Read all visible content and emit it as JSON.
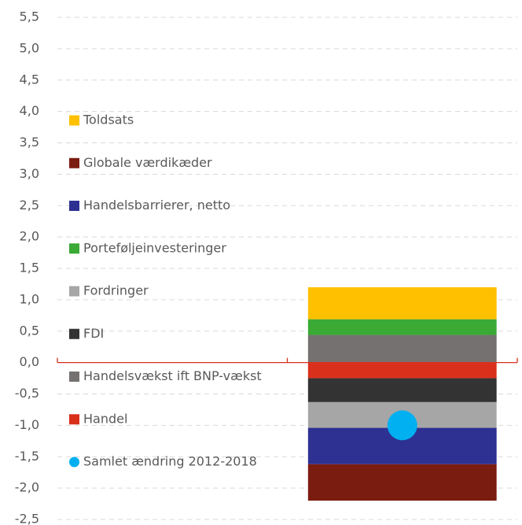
{
  "chart_data": {
    "type": "bar",
    "stacked": true,
    "categories": [
      null,
      null
    ],
    "series": [
      {
        "name": "Toldsats",
        "color": "#ffc000",
        "values": [
          null,
          0.51
        ]
      },
      {
        "name": "Globale værdikæder",
        "color": "#7b1c10",
        "values": [
          null,
          -0.58
        ]
      },
      {
        "name": "Handelsbarrierer, netto",
        "color": "#2e3192",
        "values": [
          null,
          -0.58
        ]
      },
      {
        "name": "Porteføljeinvesteringer",
        "color": "#3aaa35",
        "values": [
          null,
          0.25
        ]
      },
      {
        "name": "Fordringer",
        "color": "#a6a6a6",
        "values": [
          null,
          -0.41
        ]
      },
      {
        "name": "FDI",
        "color": "#333333",
        "values": [
          null,
          -0.38
        ]
      },
      {
        "name": "Handelsvækst ift BNP-vækst",
        "color": "#767171",
        "values": [
          null,
          0.44
        ]
      },
      {
        "name": "Handel",
        "color": "#d9301c",
        "values": [
          null,
          -0.25
        ]
      },
      {
        "name": "Samlet ændring 2012-2018",
        "color": "#00b0f0",
        "type": "scatter",
        "values": [
          null,
          -1.0
        ]
      }
    ],
    "ylim": [
      -2.5,
      5.5
    ],
    "yticks": [
      {
        "value": -2.5,
        "label": "-2,5"
      },
      {
        "value": -2.0,
        "label": "-2,0"
      },
      {
        "value": -1.5,
        "label": "-1,5"
      },
      {
        "value": -1.0,
        "label": "-1,0"
      },
      {
        "value": -0.5,
        "label": "-0,5"
      },
      {
        "value": 0.0,
        "label": "0,0"
      },
      {
        "value": 0.5,
        "label": "0,5"
      },
      {
        "value": 1.0,
        "label": "1,0"
      },
      {
        "value": 1.5,
        "label": "1,5"
      },
      {
        "value": 2.0,
        "label": "2,0"
      },
      {
        "value": 2.5,
        "label": "2,5"
      },
      {
        "value": 3.0,
        "label": "3,0"
      },
      {
        "value": 3.5,
        "label": "3,5"
      },
      {
        "value": 4.0,
        "label": "4,0"
      },
      {
        "value": 4.5,
        "label": "4,5"
      },
      {
        "value": 5.0,
        "label": "5,0"
      },
      {
        "value": 5.5,
        "label": "5,5"
      }
    ],
    "grid": true,
    "legend": "left"
  }
}
